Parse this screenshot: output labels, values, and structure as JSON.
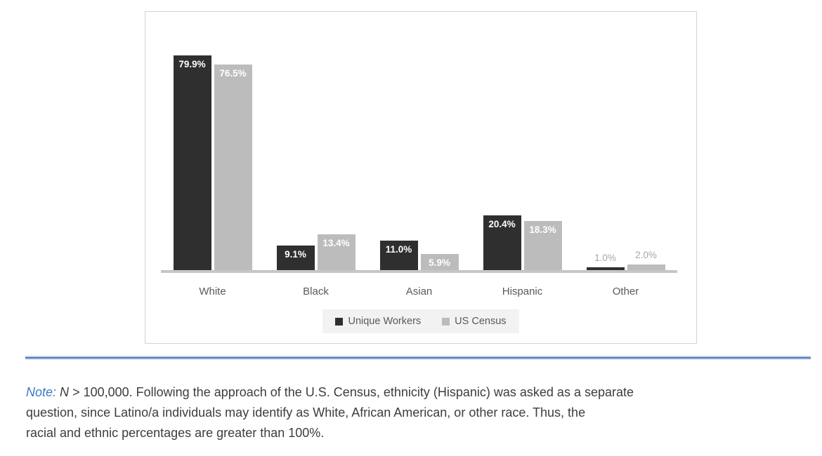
{
  "chart_data": {
    "type": "bar",
    "title": "",
    "categories": [
      "White",
      "Black",
      "Asian",
      "Hispanic",
      "Other"
    ],
    "series": [
      {
        "name": "Unique Workers",
        "color": "#2f2f2f",
        "values": [
          79.9,
          9.1,
          11.0,
          20.4,
          1.0
        ],
        "data_labels": [
          "79.9%",
          "9.1%",
          "11.0%",
          "20.4%",
          "1.0%"
        ]
      },
      {
        "name": "US Census",
        "color": "#bcbcbc",
        "values": [
          76.5,
          13.4,
          5.9,
          18.3,
          2.0
        ],
        "data_labels": [
          "76.5%",
          "13.4%",
          "5.9%",
          "18.3%",
          "2.0%"
        ]
      }
    ],
    "xlabel": "",
    "ylabel": "",
    "ylim": [
      0,
      97
    ],
    "grid": false,
    "axis_line_color": "#c6c6c6",
    "legend_position": "bottom-center",
    "label_inside_color": "#ffffff",
    "label_outside_color": "#a6a6a6"
  },
  "divider_color": "#4f81bd",
  "note": {
    "label": "Note:",
    "n_symbol": "N",
    "line1_rest": "> 100,000. Following the approach of the U.S. Census, ethnicity (Hispanic) was asked as a separate",
    "line2": "question, since Latino/a individuals may identify as White, African American, or other race. Thus, the",
    "line3": "racial and ethnic percentages are greater than 100%."
  }
}
